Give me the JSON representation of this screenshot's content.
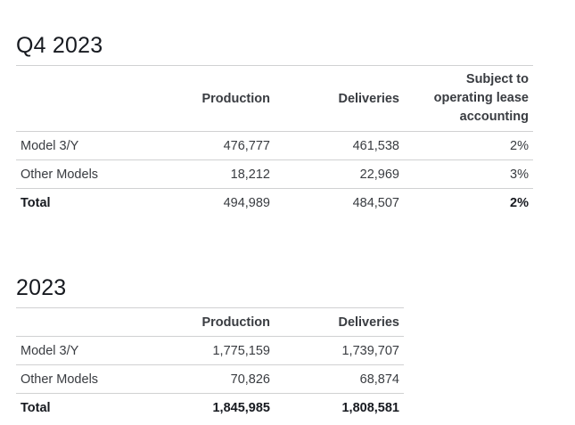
{
  "sections": [
    {
      "title": "Q4 2023",
      "headers": [
        "",
        "Production",
        "Deliveries",
        "Subject to operating lease accounting"
      ],
      "rows": [
        {
          "label": "Model 3/Y",
          "production": "476,777",
          "deliveries": "461,538",
          "lease": "2%"
        },
        {
          "label": "Other Models",
          "production": "18,212",
          "deliveries": "22,969",
          "lease": "3%"
        },
        {
          "label": "Total",
          "production": "494,989",
          "deliveries": "484,507",
          "lease": "2%"
        }
      ]
    },
    {
      "title": "2023",
      "headers": [
        "",
        "Production",
        "Deliveries"
      ],
      "rows": [
        {
          "label": "Model 3/Y",
          "production": "1,775,159",
          "deliveries": "1,739,707"
        },
        {
          "label": "Other Models",
          "production": "70,826",
          "deliveries": "68,874"
        },
        {
          "label": "Total",
          "production": "1,845,985",
          "deliveries": "1,808,581"
        }
      ]
    }
  ]
}
